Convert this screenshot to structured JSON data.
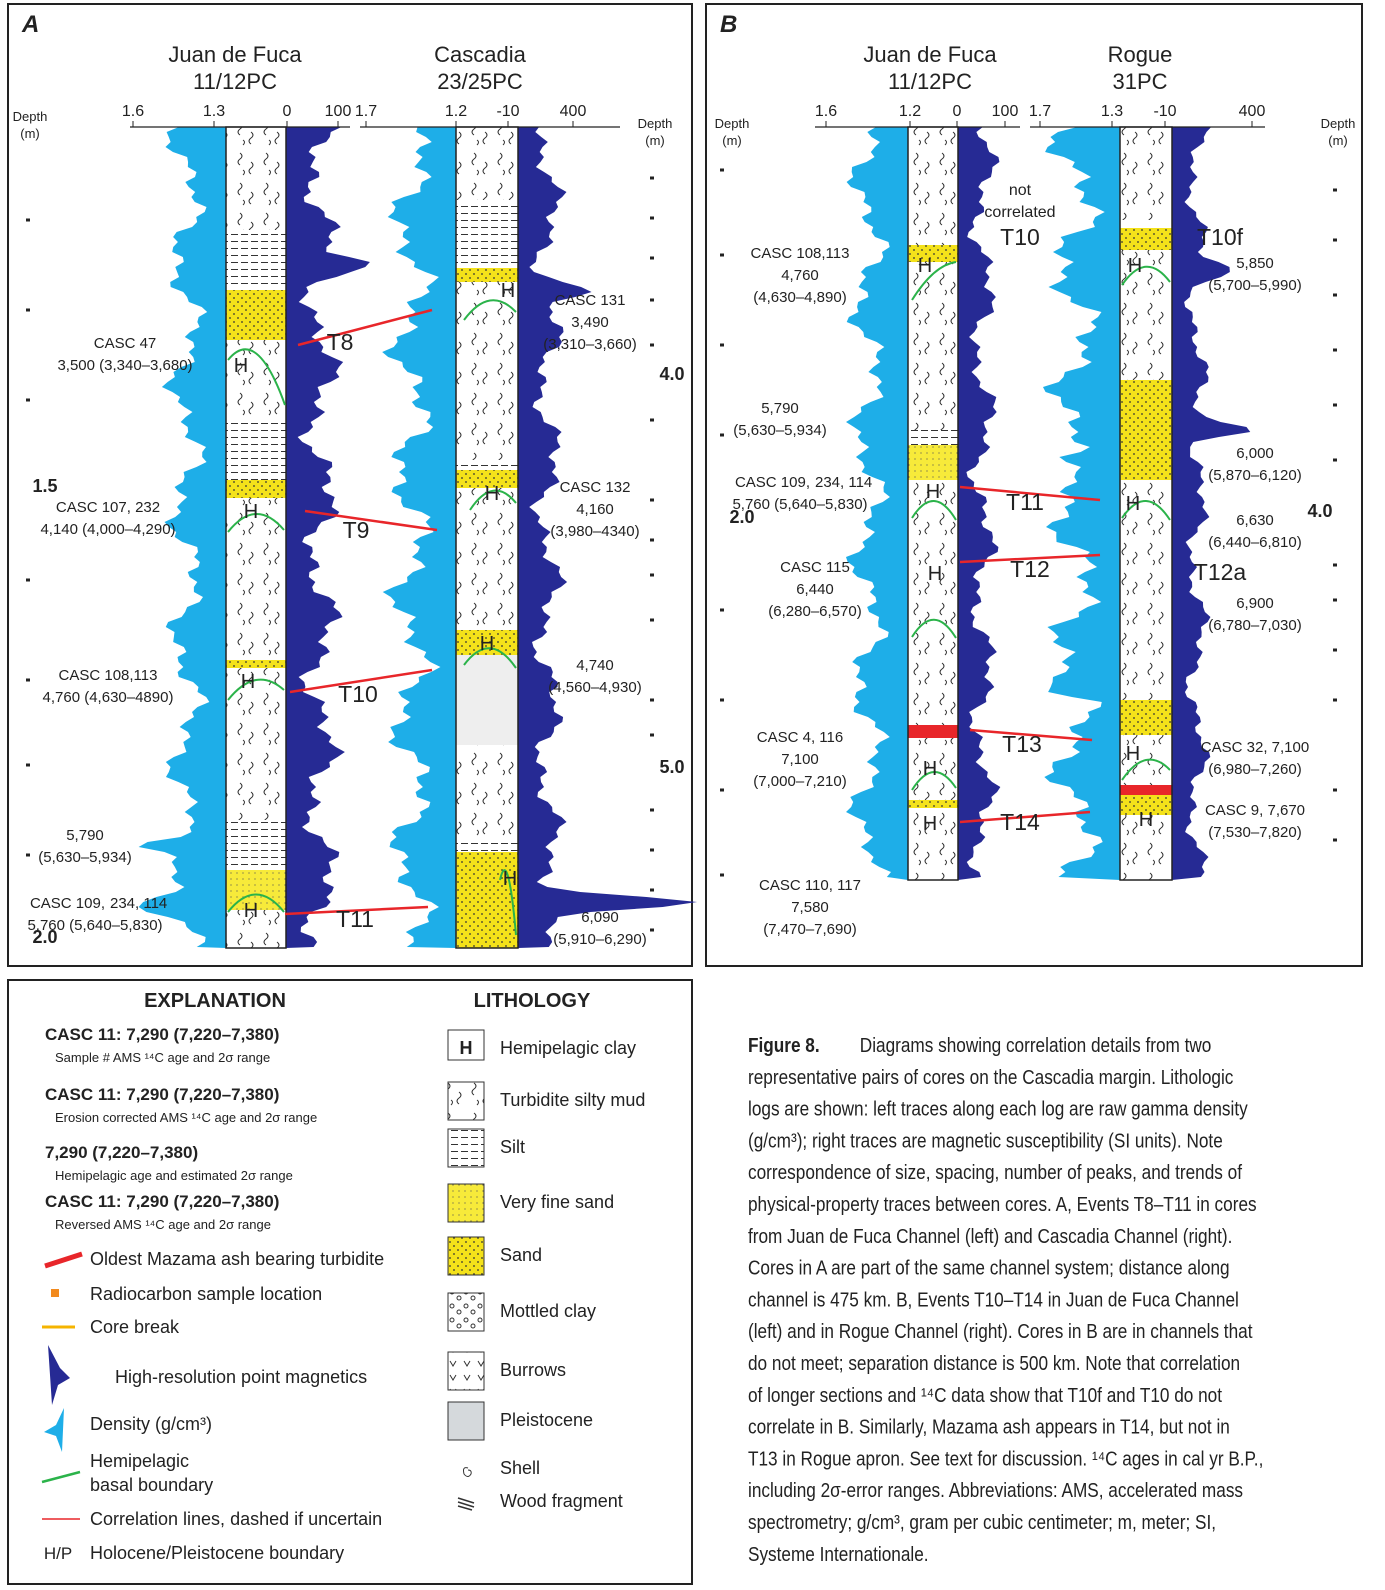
{
  "panel_a": {
    "label": "A",
    "h": "H",
    "cores": [
      {
        "name": "Juan de Fuca",
        "id": "11/12PC",
        "scale": [
          "1.6",
          "1.3",
          "0",
          "100"
        ]
      },
      {
        "name": "Cascadia",
        "id": "23/25PC",
        "scale": [
          "1.7",
          "1.2",
          "-10",
          "400"
        ]
      }
    ],
    "depth_left": {
      "title": "Depth",
      "unit": "(m)",
      "labels": [
        "1.5",
        "2.0"
      ]
    },
    "depth_right": {
      "title": "Depth",
      "unit": "(m)",
      "labels": [
        "4.0",
        "5.0"
      ]
    },
    "events": [
      "T8",
      "T9",
      "T10",
      "T11"
    ],
    "ages": [
      {
        "color": "#6b2a6e",
        "lines": [
          "CASC 47",
          "3,500 (3,340–3,680)"
        ]
      },
      {
        "color": "#222222",
        "lines": [
          "CASC 107, 232",
          "4,140 (4,000–4,290)"
        ]
      },
      {
        "color": "#222222",
        "lines": [
          "CASC 108,113",
          "4,760 (4,630–4890)"
        ]
      },
      {
        "color": "#1f2a9c",
        "lines": [
          "5,790",
          "(5,630–5,934)"
        ]
      },
      {
        "color": "#222222",
        "lines": [
          "CASC 109,",
          "5,760 (5,640–5,830)"
        ],
        "extra": {
          "text": "234, 114",
          "color": "#6b2a6e"
        }
      },
      {
        "color": "#6b2a6e",
        "lines": [
          "CASC 131",
          "3,490",
          "(3,310–3,660)"
        ]
      },
      {
        "color": "#6b2a6e",
        "lines": [
          "CASC 132",
          "4,160",
          "(3,980–4340)"
        ]
      },
      {
        "color": "#1f2a9c",
        "lines": [
          "4,740",
          "(4,560–4,930)"
        ]
      },
      {
        "color": "#1f2a9c",
        "lines": [
          "6,090",
          "(5,910–6,290)"
        ]
      }
    ]
  },
  "panel_b": {
    "label": "B",
    "h": "H",
    "cores": [
      {
        "name": "Juan de Fuca",
        "id": "11/12PC",
        "scale": [
          "1.6",
          "1.2",
          "0",
          "100"
        ]
      },
      {
        "name": "Rogue",
        "id": "31PC",
        "scale": [
          "1.7",
          "1.3",
          "-10",
          "400"
        ]
      }
    ],
    "depth_left": {
      "title": "Depth",
      "unit": "(m)",
      "labels": [
        "2.0"
      ]
    },
    "depth_right": {
      "title": "Depth",
      "unit": "(m)",
      "labels": [
        "4.0"
      ]
    },
    "events": [
      "T10",
      "T11",
      "T12",
      "T13",
      "T14",
      "T10f",
      "T12a"
    ],
    "note": [
      "not",
      "correlated"
    ],
    "ages": [
      {
        "color": "#222222",
        "lines": [
          "CASC 108,113",
          "4,760",
          "(4,630–4,890)"
        ]
      },
      {
        "color": "#1f2a9c",
        "lines": [
          "5,790",
          "(5,630–5,934)"
        ]
      },
      {
        "color": "#222222",
        "lines": [
          "CASC 109,",
          "5,760 (5,640–5,830)"
        ],
        "extra": {
          "text": "234, 114",
          "color": "#6b2a6e"
        }
      },
      {
        "color": "#6b2a6e",
        "lines": [
          "CASC 115",
          "6,440",
          "(6,280–6,570)"
        ]
      },
      {
        "color": "#222222",
        "lines": [
          "CASC 4, 116",
          "7,100",
          "(7,000–7,210)"
        ]
      },
      {
        "color": "#222222",
        "lines": [
          "CASC 110, 117",
          "7,580",
          "(7,470–7,690)"
        ]
      },
      {
        "color": "#1f2a9c",
        "lines": [
          "5,850",
          "(5,700–5,990)"
        ]
      },
      {
        "color": "#1f2a9c",
        "lines": [
          "6,000",
          "(5,870–6,120)"
        ]
      },
      {
        "color": "#1f2a9c",
        "lines": [
          "6,630",
          "(6,440–6,810)"
        ]
      },
      {
        "color": "#1f2a9c",
        "lines": [
          "6,900",
          "(6,780–7,030)"
        ]
      },
      {
        "color": "#6b2a6e",
        "lines": [
          "CASC 32,  7,100",
          "(6,980–7,260)"
        ]
      },
      {
        "color": "#6b2a6e",
        "lines": [
          "CASC 9,  7,670",
          "(7,530–7,820)"
        ]
      }
    ]
  },
  "explanation": {
    "title": "EXPLANATION",
    "ages": [
      {
        "text": "CASC 11: 7,290 (7,220–7,380)",
        "desc": "Sample # AMS ¹⁴C age and 2σ range",
        "color": "#222222"
      },
      {
        "text": "CASC 11: 7,290 (7,220–7,380)",
        "desc": "Erosion corrected AMS ¹⁴C age and 2σ range",
        "color": "#7b2d80"
      },
      {
        "text": "7,290 (7,220–7,380)",
        "desc": "Hemipelagic age and estimated 2σ range",
        "color": "#1f2a9c"
      },
      {
        "text": "CASC 11: 7,290 (7,220–7,380)",
        "desc": "Reversed AMS ¹⁴C age and 2σ range",
        "color": "#9a9a9a"
      }
    ],
    "symbols": [
      "Oldest Mazama ash bearing turbidite",
      "Radiocarbon sample location",
      "Core break",
      "High-resolution point magnetics",
      "Density (g/cm³)"
    ],
    "boundary": [
      "Hemipelagic",
      "basal boundary"
    ],
    "correlation": "Correlation lines, dashed if uncertain",
    "hp": {
      "symbol": "H/P",
      "text": "Holocene/Pleistocene boundary"
    }
  },
  "lithology": {
    "title": "LITHOLOGY",
    "h": "H",
    "items": [
      "Hemipelagic clay",
      "Turbidite silty mud",
      "Silt",
      "Very fine sand",
      "Sand",
      "Mottled clay",
      "Burrows",
      "Pleistocene",
      "Shell",
      "Wood fragment"
    ]
  },
  "caption": {
    "label": "Figure 8.",
    "lines": [
      "Diagrams showing correlation details from two",
      "representative pairs of cores on the Cascadia margin. Lithologic",
      "logs are shown: left traces along each log are raw gamma density",
      "(g/cm³); right traces are magnetic susceptibility (SI units). Note",
      "correspondence of size, spacing, number of peaks, and trends of",
      "physical-property traces between cores. A, Events T8–T11 in cores",
      "from Juan de Fuca Channel (left) and Cascadia Channel (right).",
      "Cores in A are part of the same channel system; distance along",
      "channel is 475 km. B, Events T10–T14 in Juan de Fuca Channel",
      "(left) and in Rogue Channel (right). Cores in B are in channels that",
      "do not meet; separation distance is 500 km. Note that correlation",
      "of longer sections and ¹⁴C data show that T10f and T10 do not",
      "correlate in B. Similarly, Mazama ash appears in T14, but not in",
      "T13 in Rogue apron. See text for discussion. ¹⁴C ages in cal yr B.P.,",
      "including 2σ-error ranges. Abbreviations: AMS, accelerated mass",
      "spectrometry; g/cm³, gram per cubic centimeter; m, meter; SI,",
      "Systeme Internationale."
    ]
  }
}
